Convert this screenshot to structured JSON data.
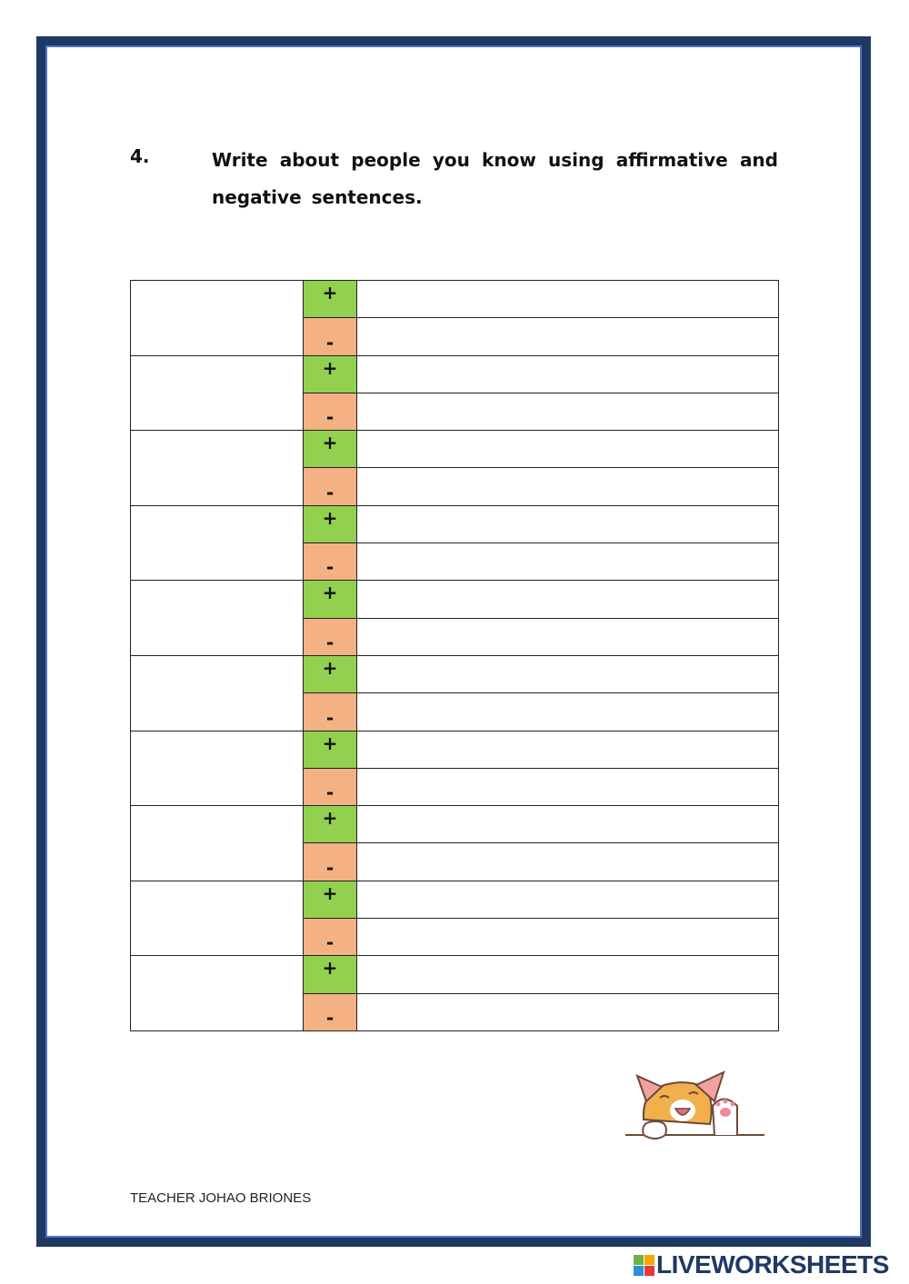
{
  "question": {
    "number": "4.",
    "text": "Write about people you know using affirmative and negative sentences."
  },
  "table": {
    "rows": [
      {
        "affirmative_sign": "+",
        "negative_sign": "-"
      },
      {
        "affirmative_sign": "+",
        "negative_sign": "-"
      },
      {
        "affirmative_sign": "+",
        "negative_sign": "-"
      },
      {
        "affirmative_sign": "+",
        "negative_sign": "-"
      },
      {
        "affirmative_sign": "+",
        "negative_sign": "-"
      },
      {
        "affirmative_sign": "+",
        "negative_sign": "-"
      },
      {
        "affirmative_sign": "+",
        "negative_sign": "-"
      },
      {
        "affirmative_sign": "+",
        "negative_sign": "-"
      },
      {
        "affirmative_sign": "+",
        "negative_sign": "-"
      },
      {
        "affirmative_sign": "+",
        "negative_sign": "-"
      }
    ],
    "colors": {
      "affirmative": "#92d050",
      "negative": "#f4b183"
    }
  },
  "footer": {
    "author": "TEACHER JOHAO BRIONES"
  },
  "brand": {
    "name": "LIVEWORKSHEETS",
    "logo_letters": [
      "L",
      "I",
      "V",
      "E"
    ]
  },
  "colors": {
    "frame": "#1f3864",
    "frame_inner": "#4f74c4"
  },
  "illustration": "waving-cat"
}
